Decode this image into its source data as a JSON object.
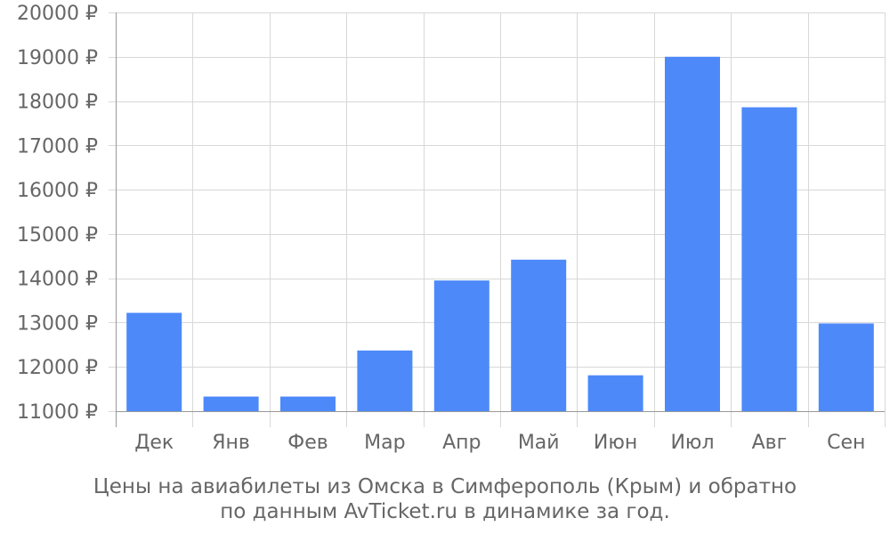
{
  "chart_data": {
    "type": "bar",
    "categories": [
      "Дек",
      "Янв",
      "Фев",
      "Мар",
      "Апр",
      "Май",
      "Июн",
      "Июл",
      "Авг",
      "Сен"
    ],
    "values": [
      13220,
      11330,
      11330,
      12370,
      13950,
      14420,
      11810,
      19000,
      17860,
      12980
    ],
    "ylim": [
      11000,
      20000
    ],
    "yticks": [
      11000,
      12000,
      13000,
      14000,
      15000,
      16000,
      17000,
      18000,
      19000,
      20000
    ],
    "ytick_suffix": " ₽",
    "grid": true,
    "bar_color": "#4d89f9",
    "grid_color": "#d8d8d8",
    "text_color": "#666666"
  },
  "caption": {
    "line1": "Цены на авиабилеты из Омска в Симферополь (Крым) и обратно",
    "line2": "по данным AvTicket.ru в динамике за год."
  }
}
